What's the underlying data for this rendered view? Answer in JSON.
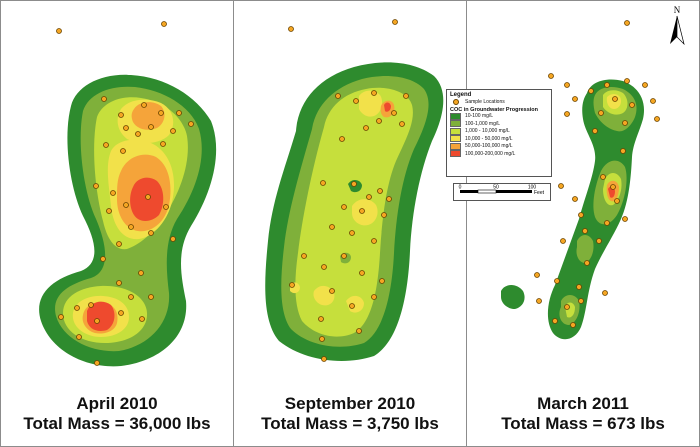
{
  "panels": [
    {
      "date": "April 2010",
      "mass": "Total Mass = 36,000 lbs"
    },
    {
      "date": "September 2010",
      "mass": "Total Mass = 3,750 lbs"
    },
    {
      "date": "March 2011",
      "mass": "Total Mass = 673 lbs"
    }
  ],
  "legend": {
    "title": "Legend",
    "sample_label": "Sample Locations",
    "subtitle": "COC in Groundwater Progression",
    "classes": [
      {
        "label": "10-100 mg/L",
        "color": "#2e8b2e"
      },
      {
        "label": "100-1,000 mg/L",
        "color": "#7fb03a"
      },
      {
        "label": "1,000 - 10,000 mg/L",
        "color": "#c6df3c"
      },
      {
        "label": "10,000 - 50,000 mg/L",
        "color": "#f2e14a"
      },
      {
        "label": "50,000-100,000 mg/L",
        "color": "#f5a43a"
      },
      {
        "label": "100,000-200,000 mg/L",
        "color": "#ee4a2e"
      }
    ]
  },
  "scale": {
    "ticks": [
      "0",
      "50",
      "100"
    ],
    "unit": "Feet"
  },
  "north_label": "N",
  "colors": {
    "sample_point": "#f5a623",
    "sample_outline": "#6b4400"
  }
}
